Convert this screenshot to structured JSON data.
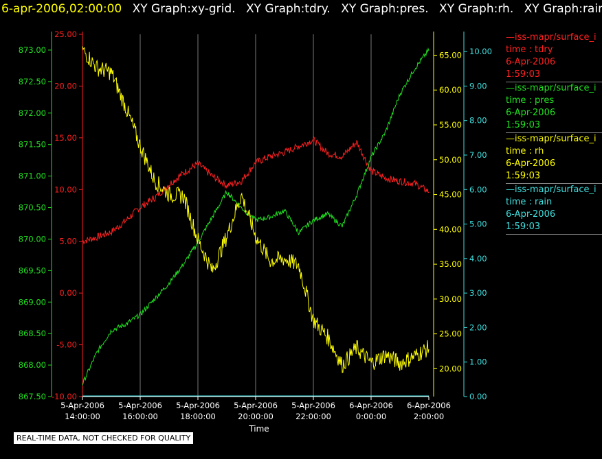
{
  "header": {
    "timestamp": "6-apr-2006,02:00:00",
    "graphs": [
      "XY Graph:xy-grid.",
      "XY Graph:tdry.",
      "XY Graph:pres.",
      "XY Graph:rh.",
      "XY Graph:rain."
    ]
  },
  "footer_note": "REAL-TIME DATA, NOT CHECKED FOR QUALITY",
  "colors": {
    "tdry": "#ff2020",
    "pres": "#20e020",
    "rh": "#ffff00",
    "rain": "#40e0e0",
    "grid": "#cccccc"
  },
  "legend": [
    {
      "title": "—iss-mapr/surface_i",
      "label": "time : tdry",
      "date": "6-Apr-2006",
      "time": "1:59:03",
      "color": "#ff2020"
    },
    {
      "title": "—iss-mapr/surface_i",
      "label": "time : pres",
      "date": "6-Apr-2006",
      "time": "1:59:03",
      "color": "#20e020"
    },
    {
      "title": "—iss-mapr/surface_i",
      "label": "time : rh",
      "date": "6-Apr-2006",
      "time": "1:59:03",
      "color": "#ffff00"
    },
    {
      "title": "—iss-mapr/surface_i",
      "label": "time : rain",
      "date": "6-Apr-2006",
      "time": "1:59:03",
      "color": "#40e0e0"
    }
  ],
  "chart_data": {
    "type": "line",
    "xlabel": "Time",
    "xlim": [
      "5-Apr-2006 14:00:00",
      "6-Apr-2006 2:00:00"
    ],
    "x_ticks": [
      [
        "5-Apr-2006",
        "14:00:00"
      ],
      [
        "5-Apr-2006",
        "16:00:00"
      ],
      [
        "5-Apr-2006",
        "18:00:00"
      ],
      [
        "5-Apr-2006",
        "20:00:00"
      ],
      [
        "5-Apr-2006",
        "22:00:00"
      ],
      [
        "6-Apr-2006",
        "0:00:00"
      ],
      [
        "6-Apr-2006",
        "2:00:00"
      ]
    ],
    "grid": "vertical",
    "axes": {
      "pres": {
        "side": "left-outer",
        "ylim": [
          867.5,
          873.25
        ],
        "ticks": [
          "867.50",
          "868.00",
          "868.50",
          "869.00",
          "869.50",
          "870.00",
          "870.50",
          "871.00",
          "871.50",
          "872.00",
          "872.50",
          "873.00"
        ]
      },
      "tdry": {
        "side": "left-inner",
        "ylim": [
          -10,
          25
        ],
        "ticks": [
          "-10.00",
          "-5.00",
          "0.00",
          "5.00",
          "10.00",
          "15.00",
          "20.00",
          "25.00"
        ]
      },
      "rh": {
        "side": "right-inner",
        "ylim": [
          16,
          68
        ],
        "ticks": [
          "20.00",
          "25.00",
          "30.00",
          "35.00",
          "40.00",
          "45.00",
          "50.00",
          "55.00",
          "60.00",
          "65.00"
        ]
      },
      "rain": {
        "side": "right-outer",
        "ylim": [
          0,
          10.5
        ],
        "ticks": [
          "0.00",
          "1.00",
          "2.00",
          "3.00",
          "4.00",
          "5.00",
          "6.00",
          "7.00",
          "8.00",
          "9.00",
          "10.00"
        ]
      }
    },
    "x_hours": [
      0,
      0.5,
      1,
      1.5,
      2,
      2.5,
      3,
      3.5,
      4,
      4.5,
      5,
      5.5,
      6,
      6.5,
      7,
      7.5,
      8,
      8.5,
      9,
      9.5,
      10,
      10.5,
      11,
      11.5,
      12
    ],
    "series": [
      {
        "key": "tdry",
        "values": [
          5.0,
          5.4,
          5.9,
          7.0,
          8.3,
          9.2,
          10.5,
          11.6,
          12.5,
          11.3,
          10.4,
          10.8,
          12.6,
          13.2,
          13.6,
          14.2,
          14.8,
          13.5,
          13.2,
          14.6,
          11.8,
          11.1,
          10.8,
          10.6,
          9.8
        ]
      },
      {
        "key": "pres",
        "values": [
          867.7,
          868.2,
          868.55,
          868.65,
          868.8,
          869.05,
          869.3,
          869.6,
          869.95,
          870.35,
          870.75,
          870.5,
          870.3,
          870.35,
          870.45,
          870.1,
          870.3,
          870.4,
          870.2,
          870.7,
          871.3,
          871.7,
          872.3,
          872.7,
          873.0
        ]
      },
      {
        "key": "rh",
        "values": [
          65.8,
          63.2,
          62.5,
          57.5,
          52.0,
          47.0,
          45.0,
          44.8,
          38.5,
          34.0,
          39.0,
          45.0,
          39.0,
          35.5,
          35.8,
          34.8,
          27.0,
          24.5,
          20.5,
          23.0,
          20.8,
          22.0,
          20.8,
          21.8,
          23.0
        ]
      },
      {
        "key": "rain",
        "values": [
          0.02,
          0.02,
          0.02,
          0.02,
          0.02,
          0.02,
          0.02,
          0.02,
          0.02,
          0.02,
          0.02,
          0.02,
          0.02,
          0.02,
          0.02,
          0.02,
          0.02,
          0.02,
          0.02,
          0.02,
          0.02,
          0.02,
          0.02,
          0.02,
          0.02
        ]
      }
    ]
  }
}
